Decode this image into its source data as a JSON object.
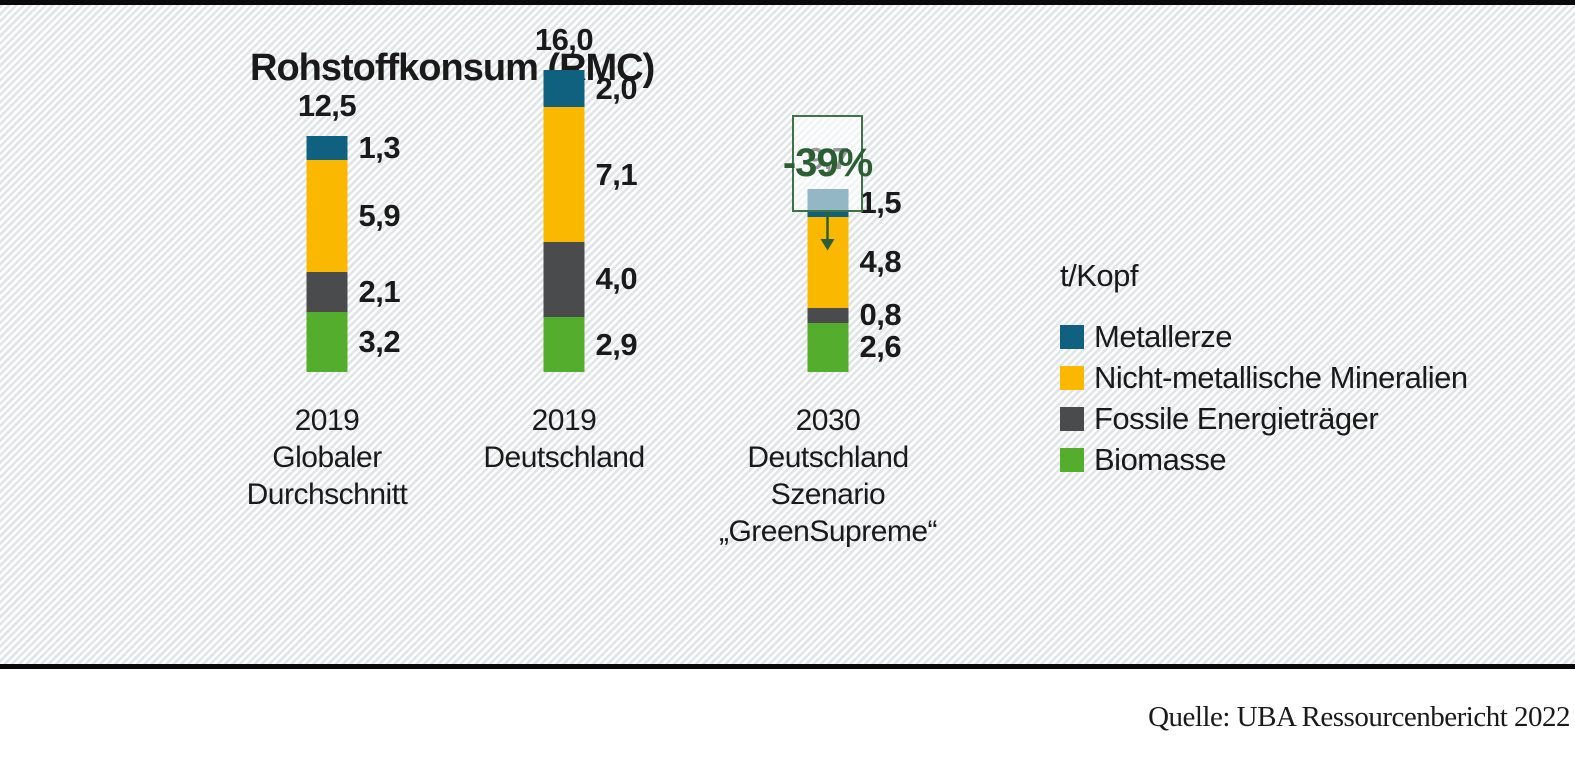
{
  "title": "Rohstoffkonsum (RMC)",
  "source": "Quelle: UBA Ressourcenbericht 2022",
  "annotation": {
    "text": "-39%",
    "target_category": "2030 Deutschland Szenario „GreenSupreme“"
  },
  "colors": {
    "metallerze": "#10617f",
    "nicht_metallische_mineralien": "#fab900",
    "fossile_energietraeger": "#494b4c",
    "biomasse": "#55ad2d",
    "annotation_green": "#2b5f33",
    "stripe_gray": "#e2e5e7",
    "text": "#1a1a1a"
  },
  "legend": {
    "title": "t/Kopf",
    "items": [
      {
        "series": "metallerze",
        "label": "Metallerze"
      },
      {
        "series": "nicht_metallische_mineralien",
        "label": "Nicht-metallische Mineralien"
      },
      {
        "series": "fossile_energietraeger",
        "label": "Fossile Energieträger"
      },
      {
        "series": "biomasse",
        "label": "Biomasse"
      }
    ]
  },
  "chart_data": {
    "type": "bar",
    "stacked": true,
    "title": "Rohstoffkonsum (RMC)",
    "unit": "t/Kopf",
    "categories": [
      "2019 Globaler Durchschnitt",
      "2019 Deutschland",
      "2030 Deutschland Szenario „GreenSupreme“"
    ],
    "series": [
      {
        "name": "Metallerze",
        "values": [
          1.3,
          2.0,
          1.5
        ]
      },
      {
        "name": "Nicht-metallische Mineralien",
        "values": [
          5.9,
          7.1,
          4.8
        ]
      },
      {
        "name": "Fossile Energieträger",
        "values": [
          2.1,
          4.0,
          0.8
        ]
      },
      {
        "name": "Biomasse",
        "values": [
          3.2,
          2.9,
          2.6
        ]
      }
    ],
    "totals": [
      12.5,
      16.0,
      9.7
    ],
    "annotations": [
      {
        "text": "-39%",
        "category_index": 2
      }
    ],
    "legend_position": "right",
    "grid": false,
    "axis_lines": false
  },
  "bars": [
    {
      "total_label": "12,5",
      "label_lines": [
        "2019",
        "Globaler",
        "Durchschnitt"
      ],
      "segments": [
        {
          "series": "metallerze",
          "value": 1.3,
          "label": "1,3"
        },
        {
          "series": "nicht_metallische_mineralien",
          "value": 5.9,
          "label": "5,9"
        },
        {
          "series": "fossile_energietraeger",
          "value": 2.1,
          "label": "2,1"
        },
        {
          "series": "biomasse",
          "value": 3.2,
          "label": "3,2"
        }
      ]
    },
    {
      "total_label": "16,0",
      "label_lines": [
        "2019",
        "Deutschland"
      ],
      "segments": [
        {
          "series": "metallerze",
          "value": 2.0,
          "label": "2,0"
        },
        {
          "series": "nicht_metallische_mineralien",
          "value": 7.1,
          "label": "7,1"
        },
        {
          "series": "fossile_energietraeger",
          "value": 4.0,
          "label": "4,0"
        },
        {
          "series": "biomasse",
          "value": 2.9,
          "label": "2,9"
        }
      ]
    },
    {
      "total_label": "9,7",
      "label_lines": [
        "2030",
        "Deutschland",
        "Szenario „GreenSupreme“"
      ],
      "segments": [
        {
          "series": "metallerze",
          "value": 1.5,
          "label": "1,5"
        },
        {
          "series": "nicht_metallische_mineralien",
          "value": 4.8,
          "label": "4,8"
        },
        {
          "series": "fossile_energietraeger",
          "value": 0.8,
          "label": "0,8"
        },
        {
          "series": "biomasse",
          "value": 2.6,
          "label": "2,6"
        }
      ]
    }
  ]
}
